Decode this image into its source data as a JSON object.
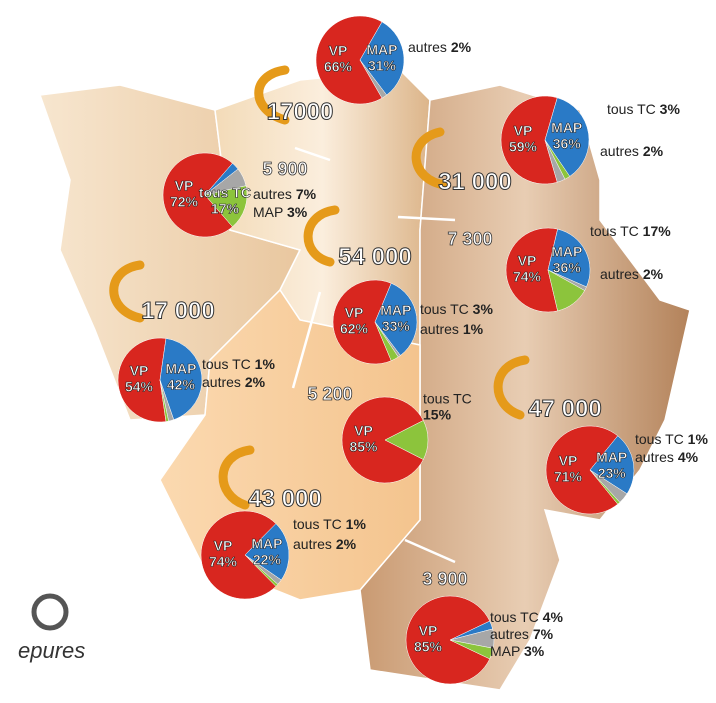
{
  "pies": [
    {
      "labels": [
        "VP",
        "MAP",
        "autres"
      ],
      "values": [
        66,
        31,
        2
      ],
      "value_labels": [
        "66%",
        "31%",
        "2%"
      ],
      "colors": [
        "#d8261f",
        "#2a7ac6",
        "#a7a7a7"
      ]
    },
    {
      "labels": [
        "VP",
        "MAP",
        "autres",
        "tous TC"
      ],
      "values": [
        59,
        36,
        2,
        3
      ],
      "value_labels": [
        "59%",
        "36%",
        "2%",
        "3%"
      ],
      "colors": [
        "#d8261f",
        "#2a7ac6",
        "#8cc43c",
        "#a7a7a7"
      ]
    },
    {
      "labels": [
        "VP",
        "MAP",
        "autres",
        "tous TC"
      ],
      "values": [
        72,
        3,
        7,
        17
      ],
      "value_labels": [
        "72%",
        "3%",
        "7%",
        "17%"
      ],
      "colors": [
        "#d8261f",
        "#2a7ac6",
        "#a7a7a7",
        "#8cc43c"
      ]
    },
    {
      "labels": [
        "VP",
        "MAP",
        "autres",
        "tous TC"
      ],
      "values": [
        74,
        36,
        2,
        17
      ],
      "value_labels": [
        "74%",
        "36%",
        "2%",
        "17%"
      ],
      "colors": [
        "#d8261f",
        "#2a7ac6",
        "#a7a7a7",
        "#8cc43c"
      ]
    },
    {
      "labels": [
        "VP",
        "MAP",
        "autres",
        "tous TC"
      ],
      "values": [
        62,
        33,
        1,
        3
      ],
      "value_labels": [
        "62%",
        "33%",
        "1%",
        "3%"
      ],
      "colors": [
        "#d8261f",
        "#2a7ac6",
        "#a7a7a7",
        "#8cc43c"
      ]
    },
    {
      "labels": [
        "VP",
        "MAP",
        "autres",
        "tous TC"
      ],
      "values": [
        54,
        42,
        2,
        1
      ],
      "value_labels": [
        "54%",
        "42%",
        "2%",
        "1%"
      ],
      "colors": [
        "#d8261f",
        "#2a7ac6",
        "#a7a7a7",
        "#8cc43c"
      ]
    },
    {
      "labels": [
        "VP",
        "tous TC"
      ],
      "values": [
        85,
        15
      ],
      "value_labels": [
        "85%",
        "15%"
      ],
      "colors": [
        "#d8261f",
        "#8cc43c"
      ]
    },
    {
      "labels": [
        "VP",
        "MAP",
        "autres",
        "tous TC"
      ],
      "values": [
        71,
        23,
        4,
        1
      ],
      "value_labels": [
        "71%",
        "23%",
        "4%",
        "1%"
      ],
      "colors": [
        "#d8261f",
        "#2a7ac6",
        "#a7a7a7",
        "#8cc43c"
      ]
    },
    {
      "labels": [
        "VP",
        "MAP",
        "autres",
        "tous TC"
      ],
      "values": [
        74,
        22,
        2,
        1
      ],
      "value_labels": [
        "74%",
        "22%",
        "2%",
        "1%"
      ],
      "colors": [
        "#d8261f",
        "#2a7ac6",
        "#a7a7a7",
        "#8cc43c"
      ]
    },
    {
      "labels": [
        "VP",
        "MAP",
        "autres",
        "tous TC"
      ],
      "values": [
        85,
        3,
        7,
        4
      ],
      "value_labels": [
        "85%",
        "3%",
        "7%",
        "4%"
      ],
      "colors": [
        "#d8261f",
        "#2a7ac6",
        "#a7a7a7",
        "#8cc43c"
      ]
    }
  ],
  "flows": [
    "17000",
    "5 900",
    "31 000",
    "54 000",
    "7 300",
    "17 000",
    "5 200",
    "47 000",
    "43 000",
    "3 900"
  ],
  "logo": "epures"
}
